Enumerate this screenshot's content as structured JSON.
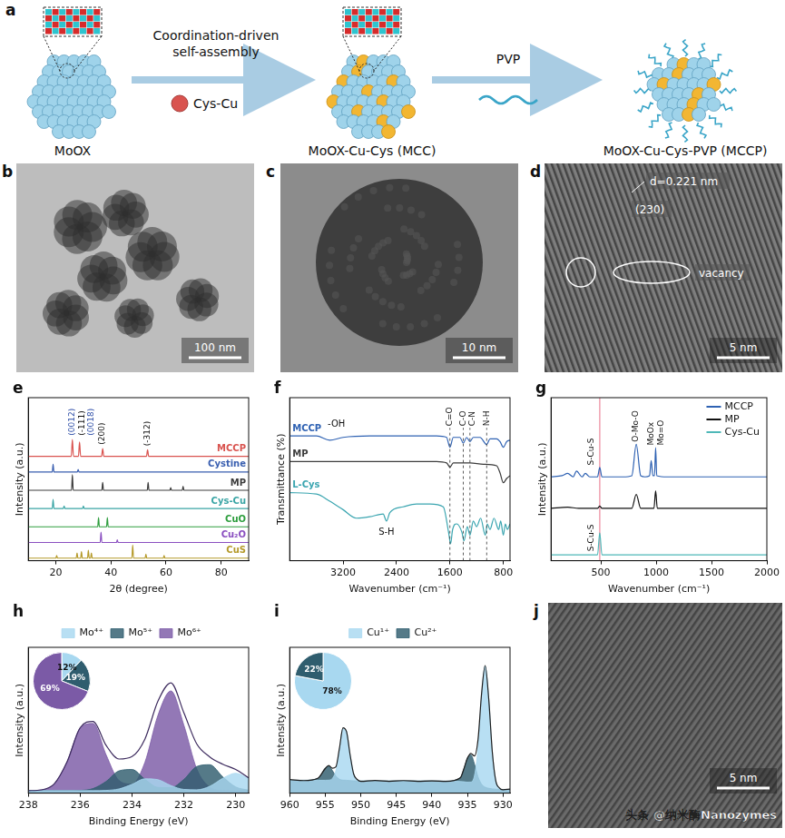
{
  "schematic": {
    "letter": "a",
    "start": "MoOX",
    "step1": "Coordination-driven self-assembly",
    "reagent": "Cys-Cu",
    "middle": "MoOX-Cu-Cys (MCC)",
    "step2": "PVP",
    "end": "MoOX-Cu-Cys-PVP (MCCP)"
  },
  "micrographs": [
    {
      "letter": "b",
      "scale_bar": "100 nm"
    },
    {
      "letter": "c",
      "scale_bar": "10 nm"
    },
    {
      "letter": "d",
      "scale_bar": "5 nm",
      "annotations": [
        "d=0.221 nm",
        "(230)",
        "vacancy"
      ]
    },
    {
      "letter": "j",
      "scale_bar": "5 nm"
    }
  ],
  "watermark": "头条 @纳米酶Nanozymes",
  "chart_data": [
    {
      "letter": "e",
      "type": "line",
      "x_label": "2θ (degree)",
      "y_label": "Intensity (a.u.)",
      "xlim": [
        10,
        90
      ],
      "xticks": [
        20,
        40,
        60,
        80
      ],
      "ylim": [
        0,
        125
      ],
      "tick_labels": "x",
      "grid": false,
      "legend": "inline_right",
      "series": [
        {
          "name": "MCCP",
          "color": "#d9534f",
          "x": [
            10,
            25.6,
            26,
            26.4,
            28.2,
            28.6,
            29,
            36.6,
            37,
            37.4,
            52.9,
            53.3,
            53.7,
            90
          ],
          "values": [
            80,
            80,
            93,
            80,
            80,
            91,
            80,
            80,
            86,
            80,
            80,
            85,
            80,
            80
          ]
        },
        {
          "name": "Cystine",
          "color": "#3a5fb0",
          "x": [
            10,
            18.7,
            19,
            19.3,
            27.8,
            28.1,
            28.4,
            90
          ],
          "values": [
            68,
            68,
            74,
            68,
            68,
            70,
            68,
            68
          ]
        },
        {
          "name": "MP",
          "color": "#3c3c3c",
          "x": [
            10,
            25.7,
            26,
            26.3,
            36.7,
            37,
            37.3,
            53.2,
            53.5,
            53.8,
            61.4,
            61.7,
            62,
            65.9,
            66.2,
            66.5,
            90
          ],
          "values": [
            54,
            54,
            66,
            54,
            54,
            60,
            54,
            54,
            60,
            54,
            54,
            56,
            54,
            54,
            57,
            54,
            54
          ]
        },
        {
          "name": "Cys-Cu",
          "color": "#3aa5a5",
          "x": [
            10,
            18.7,
            19,
            19.3,
            22.7,
            23,
            23.3,
            29.7,
            30,
            30.3,
            90
          ],
          "values": [
            40,
            40,
            47,
            40,
            40,
            42,
            40,
            40,
            42,
            40,
            40
          ]
        },
        {
          "name": "CuO",
          "color": "#2e9e3e",
          "x": [
            10,
            35.2,
            35.5,
            35.8,
            38.4,
            38.7,
            39,
            90
          ],
          "values": [
            26,
            26,
            33,
            26,
            26,
            33,
            26,
            26
          ]
        },
        {
          "name": "Cu₂O",
          "color": "#8a4fc0",
          "x": [
            10,
            36.1,
            36.4,
            36.7,
            42,
            42.3,
            42.6,
            90
          ],
          "values": [
            14,
            14,
            22,
            14,
            14,
            16,
            14,
            14
          ]
        },
        {
          "name": "CuS",
          "color": "#b59a2a",
          "x": [
            10,
            20,
            20.3,
            20.6,
            27.4,
            27.7,
            28,
            29,
            29.3,
            29.6,
            31.5,
            31.8,
            32.1,
            32.6,
            32.9,
            33.2,
            47.6,
            47.9,
            48.2,
            52.4,
            52.7,
            53,
            59,
            59.3,
            59.6,
            90
          ],
          "values": [
            2,
            2,
            4,
            2,
            2,
            6,
            2,
            2,
            7,
            2,
            2,
            8,
            2,
            2,
            6,
            2,
            2,
            12,
            2,
            2,
            5,
            2,
            2,
            4,
            2,
            2
          ]
        }
      ],
      "peak_labels": [
        {
          "text": "(0012)",
          "x": 26,
          "y": 96,
          "color": "#2f4fa8"
        },
        {
          "text": "(-111)",
          "x": 27.5,
          "y": 96,
          "color": "#111111"
        },
        {
          "text": "(0018)",
          "x": 28.6,
          "y": 96,
          "color": "#2f4fa8"
        },
        {
          "text": "(200)",
          "x": 37,
          "y": 89,
          "color": "#111111"
        },
        {
          "text": "(-312)",
          "x": 53.3,
          "y": 88,
          "color": "#111111"
        }
      ]
    },
    {
      "letter": "f",
      "type": "line",
      "x_label": "Wavenumber (cm⁻¹)",
      "y_label": "Transmittance (%)",
      "xlim": [
        4000,
        700
      ],
      "xticks": [
        3200,
        2400,
        1600,
        800
      ],
      "ylim": [
        0,
        115
      ],
      "tick_labels": "x",
      "grid": false,
      "legend": "inline_left",
      "series": [
        {
          "name": "MCCP",
          "color": "#2f62b3",
          "x": [
            4000,
            3600,
            3400,
            3200,
            2800,
            2400,
            2000,
            1800,
            1650,
            1600,
            1550,
            1450,
            1400,
            1350,
            1300,
            1250,
            1150,
            1050,
            1000,
            900,
            850,
            800,
            750,
            700
          ],
          "values": [
            88,
            88,
            85,
            87,
            88,
            88,
            88,
            88,
            87,
            80,
            87,
            87,
            83,
            87,
            84,
            87,
            87,
            82,
            86,
            86,
            84,
            80,
            84,
            85
          ]
        },
        {
          "name": "MP",
          "color": "#3c3c3c",
          "x": [
            4000,
            3200,
            2400,
            1800,
            1650,
            1600,
            1550,
            1400,
            1300,
            1100,
            900,
            850,
            800,
            750,
            700
          ],
          "values": [
            70,
            70,
            70,
            70,
            69,
            66,
            69,
            69,
            69,
            68,
            67,
            62,
            55,
            58,
            60
          ]
        },
        {
          "name": "L-Cys",
          "color": "#3aa5b0",
          "x": [
            4000,
            3600,
            3400,
            3200,
            3000,
            2800,
            2600,
            2550,
            2500,
            2300,
            2100,
            1900,
            1700,
            1620,
            1590,
            1560,
            1500,
            1420,
            1390,
            1340,
            1300,
            1250,
            1200,
            1140,
            1070,
            1040,
            1000,
            940,
            870,
            840,
            800,
            770,
            740,
            700
          ],
          "values": [
            48,
            47,
            42,
            36,
            30,
            31,
            33,
            28,
            34,
            38,
            40,
            40,
            38,
            20,
            12,
            22,
            26,
            20,
            14,
            24,
            18,
            28,
            24,
            30,
            18,
            26,
            22,
            30,
            22,
            28,
            18,
            26,
            22,
            26
          ]
        }
      ],
      "peak_labels": [
        {
          "text": "C=O",
          "x": 1600,
          "y": 95,
          "line_style": "dashed"
        },
        {
          "text": "C-O",
          "x": 1400,
          "y": 95,
          "line_style": "dashed"
        },
        {
          "text": "C-N",
          "x": 1300,
          "y": 95,
          "line_style": "dashed"
        },
        {
          "text": "N-H",
          "x": 1050,
          "y": 95,
          "line_style": "dashed"
        }
      ],
      "annotations": [
        {
          "text": "-OH",
          "x": 3300,
          "y": 96
        },
        {
          "text": "S-H",
          "x": 2550,
          "y": 20
        }
      ]
    },
    {
      "letter": "g",
      "type": "line",
      "x_label": "Wavenumber (cm⁻¹)",
      "y_label": "Intensity (a.u.)",
      "xlim": [
        50,
        2000
      ],
      "xticks": [
        500,
        1000,
        1500,
        2000
      ],
      "ylim": [
        0,
        140
      ],
      "tick_labels": "x",
      "grid": false,
      "legend": "upper right",
      "series": [
        {
          "name": "MCCP",
          "color": "#2f62b3",
          "x": [
            50,
            150,
            200,
            250,
            280,
            330,
            360,
            400,
            470,
            490,
            510,
            600,
            700,
            780,
            820,
            860,
            900,
            940,
            955,
            970,
            985,
            995,
            1005,
            1100,
            1300,
            1500,
            1700,
            2000
          ],
          "values": [
            72,
            73,
            75,
            72,
            77,
            72,
            75,
            72,
            72,
            80,
            72,
            72,
            72,
            73,
            100,
            73,
            72,
            73,
            86,
            73,
            73,
            97,
            73,
            72,
            72,
            72,
            72,
            72
          ]
        },
        {
          "name": "MP",
          "color": "#111111",
          "x": [
            50,
            200,
            300,
            470,
            490,
            510,
            780,
            820,
            860,
            980,
            995,
            1010,
            1200,
            2000
          ],
          "values": [
            45,
            46,
            45,
            45,
            47,
            45,
            45,
            57,
            45,
            45,
            60,
            45,
            45,
            45
          ]
        },
        {
          "name": "Cys-Cu",
          "color": "#4fb8b8",
          "x": [
            50,
            400,
            470,
            490,
            510,
            600,
            1000,
            2000
          ],
          "values": [
            5,
            5,
            5,
            24,
            5,
            5,
            5,
            5
          ]
        }
      ],
      "vlines": [
        {
          "x": 490,
          "color": "#f0a0b0"
        }
      ],
      "peak_labels": [
        {
          "text": "S-Cu-S",
          "x": 490,
          "y": 82
        },
        {
          "text": "S-Cu-S",
          "x": 490,
          "y": 8
        },
        {
          "text": "O-Mo-O",
          "x": 820,
          "y": 102
        },
        {
          "text": "MoOx",
          "x": 955,
          "y": 99
        },
        {
          "text": "Mo=O",
          "x": 995,
          "y": 99
        }
      ]
    },
    {
      "letter": "h",
      "type": "line",
      "x_label": "Binding Energy (eV)",
      "y_label": "Intensity (a.u.)",
      "xlim": [
        238,
        229.5
      ],
      "xticks": [
        238,
        236,
        234,
        232,
        230
      ],
      "ylim": [
        3,
        120
      ],
      "tick_labels": "x",
      "grid": false,
      "legend": "top",
      "x": [
        238,
        237.5,
        237,
        236.5,
        236,
        235.5,
        235,
        234.5,
        234,
        233.5,
        233,
        232.5,
        232,
        231.5,
        231,
        230.5,
        230,
        229.5
      ],
      "series": [
        {
          "name": "Mo⁴⁺",
          "type": "area",
          "color": "#a8d8f0",
          "values": [
            5,
            5,
            5,
            5,
            5,
            5,
            5.2,
            6.4,
            10.1,
            14.5,
            13.8,
            9.1,
            6,
            5.7,
            8.5,
            14.9,
            19,
            14.9
          ]
        },
        {
          "name": "Mo⁵⁺",
          "type": "area",
          "color": "#2f5d6e",
          "values": [
            5,
            5,
            5,
            5,
            5.2,
            6.7,
            12.4,
            20.9,
            22,
            14.1,
            7.6,
            7.4,
            14,
            24.4,
            25.8,
            16.1,
            8,
            5.4
          ]
        },
        {
          "name": "Mo⁶⁺",
          "type": "area",
          "color": "#7b5aa6",
          "values": [
            5,
            5.6,
            10.5,
            28.4,
            55.3,
            58.9,
            33.8,
            13.1,
            10.3,
            27.9,
            65.4,
            85,
            57.6,
            22.3,
            7.8,
            5.2,
            5,
            5
          ]
        },
        {
          "color": "#3d2b5e",
          "values": [
            5,
            5.6,
            10.5,
            28.4,
            55.5,
            60.6,
            41.4,
            30.4,
            32.4,
            46.5,
            76.8,
            91.5,
            67.6,
            42.4,
            32.1,
            26.2,
            22,
            15.3
          ]
        }
      ],
      "pie": {
        "type": "pie",
        "values": [
          12,
          19,
          69
        ],
        "value_labels": [
          "12%",
          "19%",
          "69%"
        ],
        "colors": [
          "#a8d8f0",
          "#2f5d6e",
          "#7b5aa6"
        ],
        "data_labels": true
      }
    },
    {
      "letter": "i",
      "type": "line",
      "x_label": "Binding Energy (eV)",
      "y_label": "Intensity (a.u.)",
      "xlim": [
        960,
        929
      ],
      "xticks": [
        960,
        955,
        950,
        945,
        940,
        935,
        930
      ],
      "ylim": [
        3,
        105
      ],
      "tick_labels": "x",
      "grid": false,
      "legend": "top",
      "x": [
        960,
        958,
        956,
        955,
        954.5,
        954,
        953.5,
        953,
        952.5,
        952,
        951.5,
        951,
        950.5,
        950,
        948,
        946,
        944,
        942,
        940,
        938,
        936,
        935.5,
        935,
        934.5,
        934,
        933.5,
        933,
        932.5,
        932,
        931.5,
        931,
        930.5,
        930,
        929
      ],
      "series": [
        {
          "name": "Cu¹⁺",
          "type": "area",
          "color": "#a8d8f0",
          "values": [
            12,
            12,
            12,
            12,
            12.1,
            13.3,
            18.9,
            33.3,
            48.3,
            46.2,
            29.6,
            16.7,
            12.3,
            11.5,
            11.5,
            11.5,
            11.5,
            11.5,
            11.5,
            11.4,
            11.2,
            11,
            10.7,
            10.8,
            15.4,
            34.6,
            71,
            92,
            69.6,
            32,
            11.8,
            6.4,
            5.5,
            5.5
          ]
        },
        {
          "name": "Cu²⁺",
          "type": "area",
          "color": "#2f5d6e",
          "values": [
            12,
            12,
            13.4,
            20.5,
            21.9,
            18.9,
            14.9,
            12.7,
            12.1,
            12,
            11.8,
            11.6,
            11.5,
            11.5,
            11.5,
            11.5,
            11.5,
            11.5,
            11.5,
            11.4,
            13.9,
            19.7,
            27.6,
            29.8,
            23.3,
            14.4,
            9.3,
            7.2,
            6.4,
            6,
            5.8,
            5.6,
            5.5,
            5.5
          ]
        },
        {
          "color": "#1e1e1e",
          "values": [
            12.5,
            11.8,
            13.6,
            20.2,
            22.3,
            20.5,
            21.4,
            34.4,
            48.7,
            46,
            29.9,
            16.4,
            12.6,
            11.2,
            11.9,
            11.3,
            11.8,
            11.2,
            11.6,
            11.3,
            13.7,
            19.9,
            27.4,
            30.8,
            29,
            40.6,
            72.7,
            92.3,
            69.2,
            32.3,
            11.6,
            6.7,
            5.4,
            5.8
          ]
        }
      ],
      "pie": {
        "type": "pie",
        "values": [
          78,
          22
        ],
        "value_labels": [
          "78%",
          "22%"
        ],
        "colors": [
          "#a8d8f0",
          "#2f5d6e"
        ],
        "data_labels": true
      }
    }
  ]
}
